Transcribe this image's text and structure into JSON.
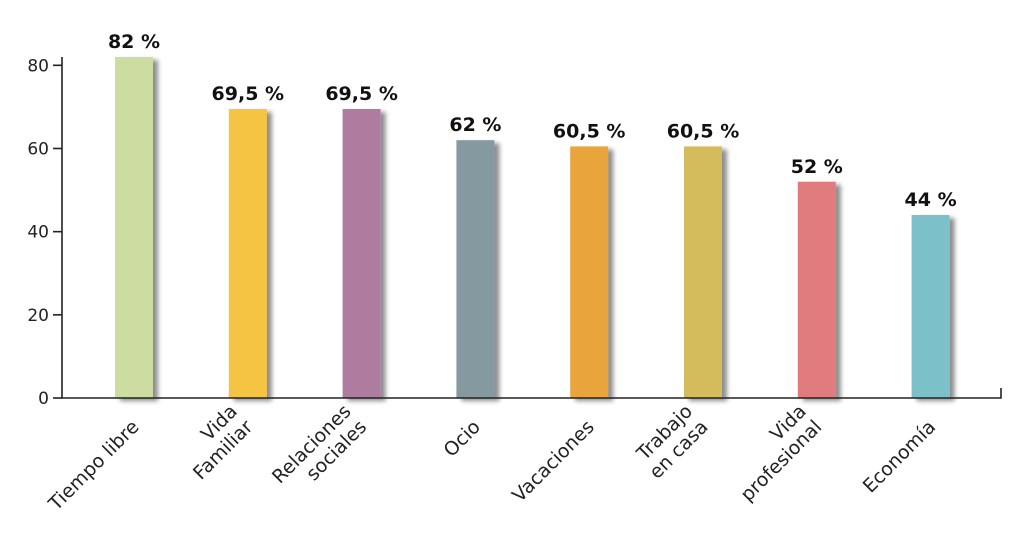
{
  "chart_data": {
    "type": "bar",
    "categories": [
      [
        "Tiempo libre"
      ],
      [
        "Vida",
        "Familiar"
      ],
      [
        "Relaciones",
        "sociales"
      ],
      [
        "Ocio"
      ],
      [
        "Vacaciones"
      ],
      [
        "Trabajo",
        "en casa"
      ],
      [
        "Vida",
        "profesional"
      ],
      [
        "Economía"
      ]
    ],
    "values": [
      82,
      69.5,
      69.5,
      62,
      60.5,
      60.5,
      52,
      44
    ],
    "value_labels": [
      "82 %",
      "69,5 %",
      "69,5 %",
      "62 %",
      "60,5 %",
      "60,5 %",
      "52 %",
      "44 %"
    ],
    "colors": [
      "#cddca0",
      "#f4c443",
      "#ad7b9e",
      "#859aa0",
      "#e9a43b",
      "#d4bc5d",
      "#e07c7d",
      "#7bc0c9"
    ],
    "yticks": [
      0,
      20,
      40,
      60,
      80
    ],
    "ylim": [
      0,
      82
    ],
    "xlabel": "",
    "ylabel": "",
    "title": "",
    "grid": false,
    "legend": "none"
  }
}
